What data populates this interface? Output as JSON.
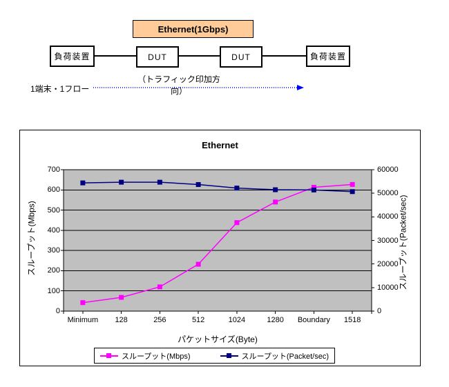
{
  "diagram": {
    "ethernet_label": "Ethernet(1Gbps)",
    "ethernet_box_fill": "#ffcc99",
    "left_device_label": "負荷装置",
    "dut1_label": "DUT",
    "dut2_label": "DUT",
    "right_device_label": "負荷装置",
    "flow_label": "1端末・1フロー",
    "traffic_direction_label": "（トラフィック印加方向）",
    "arrow_color": "#0000ff"
  },
  "chart_data": {
    "type": "line",
    "title": "Ethernet",
    "xlabel": "パケットサイズ(Byte)",
    "ylabel_left": "スループット(Mbps)",
    "ylabel_right": "スループット(Packet/sec)",
    "categories": [
      "Minimum",
      "128",
      "256",
      "512",
      "1024",
      "1280",
      "Boundary",
      "1518"
    ],
    "series": [
      {
        "name": "スループット(Mbps)",
        "axis": "left",
        "color": "#ff00ff",
        "values": [
          42,
          68,
          120,
          232,
          438,
          540,
          613,
          627
        ]
      },
      {
        "name": "スループット(Packet/sec)",
        "axis": "right",
        "color": "#000080",
        "values": [
          54400,
          54700,
          54700,
          53700,
          52200,
          51500,
          51400,
          50700
        ]
      }
    ],
    "y_left": {
      "min": 0,
      "max": 700,
      "ticks": [
        0,
        100,
        200,
        300,
        400,
        500,
        600,
        700
      ]
    },
    "y_right": {
      "min": 0,
      "max": 60000,
      "ticks": [
        0,
        10000,
        20000,
        30000,
        40000,
        50000,
        60000
      ]
    },
    "plot_bg": "#c0c0c0",
    "grid": true,
    "gridline_color": "#000000",
    "legend_position": "bottom"
  }
}
